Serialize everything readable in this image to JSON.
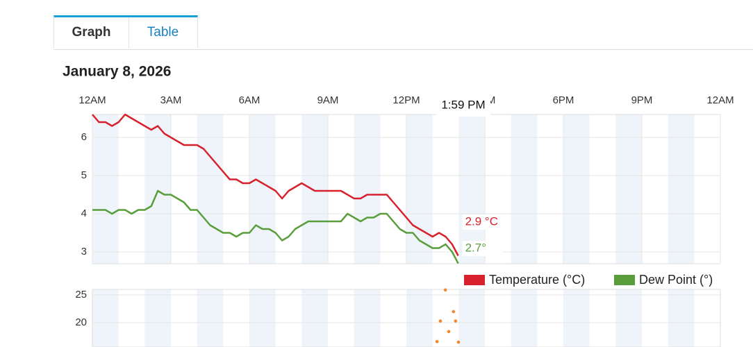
{
  "tabs": [
    "Graph",
    "Table"
  ],
  "chart_data": [
    {
      "type": "line",
      "title": "January 8, 2026",
      "tooltip": "1:59 PM",
      "x": [
        0,
        0.25,
        0.5,
        0.75,
        1,
        1.25,
        1.5,
        1.75,
        2,
        2.25,
        2.5,
        2.75,
        3,
        3.25,
        3.5,
        3.75,
        4,
        4.25,
        4.5,
        4.75,
        5,
        5.25,
        5.5,
        5.75,
        6,
        6.25,
        6.5,
        6.75,
        7,
        7.25,
        7.5,
        7.75,
        8,
        8.25,
        8.5,
        8.75,
        9,
        9.25,
        9.5,
        9.75,
        10,
        10.25,
        10.5,
        10.75,
        11,
        11.25,
        11.5,
        11.75,
        12,
        12.25,
        12.5,
        12.75,
        13,
        13.25,
        13.5,
        13.75,
        13.98
      ],
      "series": [
        {
          "name": "Temperature (°C)",
          "color": "#d7212c",
          "last_label": "2.9 °C",
          "values": [
            6.6,
            6.4,
            6.4,
            6.3,
            6.4,
            6.6,
            6.5,
            6.4,
            6.3,
            6.2,
            6.3,
            6.1,
            6.0,
            5.9,
            5.8,
            5.8,
            5.8,
            5.7,
            5.5,
            5.3,
            5.1,
            4.9,
            4.9,
            4.8,
            4.8,
            4.9,
            4.8,
            4.7,
            4.6,
            4.4,
            4.6,
            4.7,
            4.8,
            4.7,
            4.6,
            4.6,
            4.6,
            4.6,
            4.6,
            4.5,
            4.4,
            4.4,
            4.5,
            4.5,
            4.5,
            4.5,
            4.3,
            4.1,
            3.9,
            3.7,
            3.6,
            3.5,
            3.4,
            3.5,
            3.4,
            3.2,
            2.9
          ]
        },
        {
          "name": "Dew Point (°)",
          "color": "#5a9e3c",
          "last_label": "2.7°",
          "values": [
            4.1,
            4.1,
            4.1,
            4.0,
            4.1,
            4.1,
            4.0,
            4.1,
            4.1,
            4.2,
            4.6,
            4.5,
            4.5,
            4.4,
            4.3,
            4.1,
            4.1,
            3.9,
            3.7,
            3.6,
            3.5,
            3.5,
            3.4,
            3.5,
            3.5,
            3.7,
            3.6,
            3.6,
            3.5,
            3.3,
            3.4,
            3.6,
            3.7,
            3.8,
            3.8,
            3.8,
            3.8,
            3.8,
            3.8,
            4.0,
            3.9,
            3.8,
            3.9,
            3.9,
            4.0,
            4.0,
            3.8,
            3.6,
            3.5,
            3.5,
            3.3,
            3.2,
            3.1,
            3.1,
            3.2,
            3.0,
            2.7
          ]
        }
      ],
      "xlim": [
        0,
        24
      ],
      "xticks": [
        {
          "value": 0,
          "label": "12AM"
        },
        {
          "value": 3,
          "label": "3AM"
        },
        {
          "value": 6,
          "label": "6AM"
        },
        {
          "value": 9,
          "label": "9AM"
        },
        {
          "value": 12,
          "label": "12PM"
        },
        {
          "value": 15,
          "label": "3PM"
        },
        {
          "value": 18,
          "label": "6PM"
        },
        {
          "value": 21,
          "label": "9PM"
        },
        {
          "value": 24,
          "label": "12AM"
        }
      ],
      "ylim": [
        2.69,
        6.6
      ],
      "yticks": [
        3,
        4,
        5,
        6
      ],
      "grid": true,
      "legend": "bottom-right"
    },
    {
      "type": "scatter",
      "color": "#f5862a",
      "x": [
        13.49,
        13.8,
        13.3,
        13.88,
        13.62,
        13.17,
        13.99
      ],
      "values": [
        25.9,
        22,
        20.3,
        20.3,
        18.4,
        16.6,
        16.5
      ],
      "xlim": [
        0,
        24
      ],
      "ylim": [
        15.625,
        26
      ],
      "yticks": [
        20,
        25
      ],
      "grid": true
    }
  ]
}
